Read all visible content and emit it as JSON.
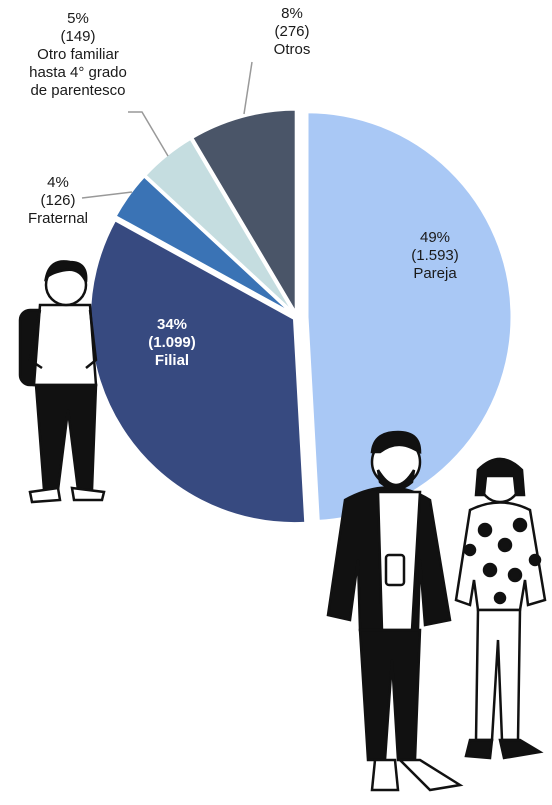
{
  "chart_data": {
    "type": "pie",
    "categories": [
      "Pareja",
      "Filial",
      "Fraternal",
      "Otro familiar\nhasta 4° grado\nde parentesco",
      "Otros"
    ],
    "values": [
      49,
      34,
      4,
      5,
      8
    ],
    "value_labels": [
      "49%",
      "34%",
      "4%",
      "5%",
      "8%"
    ],
    "counts": [
      1593,
      1099,
      126,
      149,
      276
    ],
    "count_labels": [
      "(1.593)",
      "(1.099)",
      "(126)",
      "(149)",
      "(276)"
    ],
    "colors": [
      "#a9c8f5",
      "#374a80",
      "#3a73b5",
      "#c5dde0",
      "#4a5568"
    ]
  }
}
